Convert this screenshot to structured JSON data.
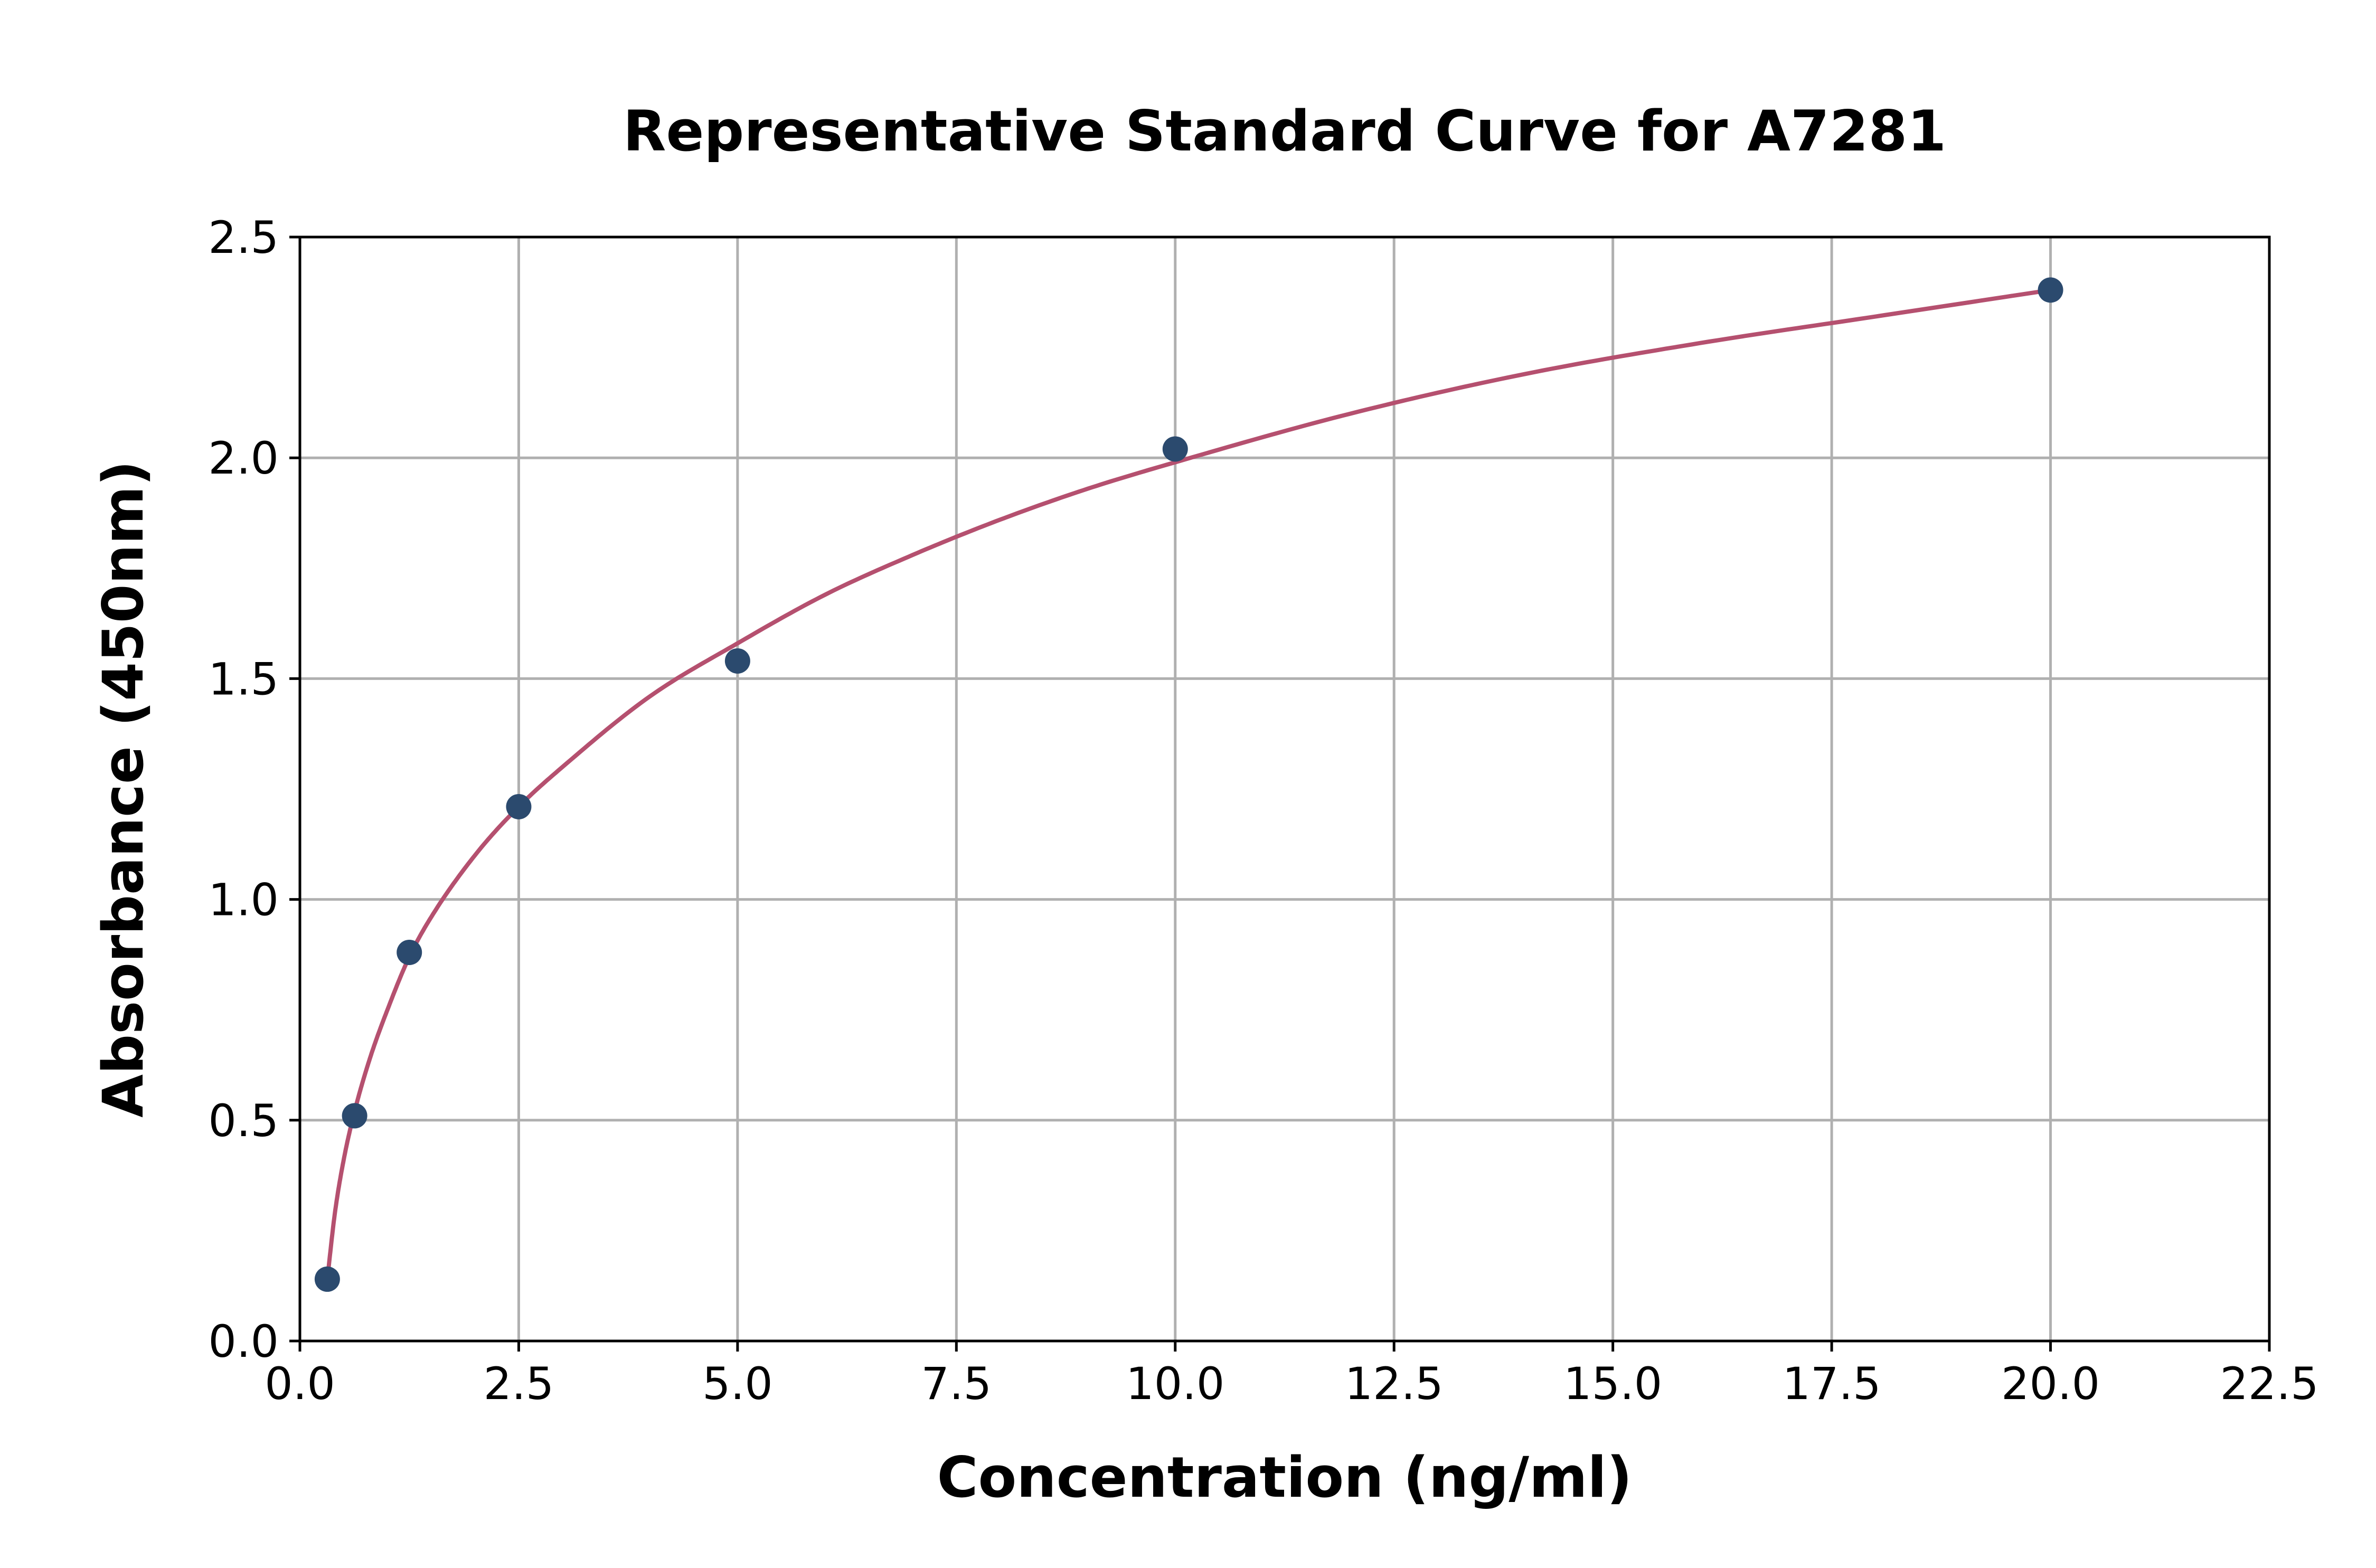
{
  "chart_data": {
    "type": "scatter",
    "title": "Representative Standard Curve for A7281",
    "xlabel": "Concentration (ng/ml)",
    "ylabel": "Absorbance (450nm)",
    "xlim": [
      0,
      22.5
    ],
    "ylim": [
      0,
      2.5
    ],
    "grid": true,
    "x_ticks": [
      "0.0",
      "2.5",
      "5.0",
      "7.5",
      "10.0",
      "12.5",
      "15.0",
      "17.5",
      "20.0",
      "22.5"
    ],
    "y_ticks": [
      "0.0",
      "0.5",
      "1.0",
      "1.5",
      "2.0",
      "2.5"
    ],
    "series": [
      {
        "kind": "points",
        "color": "#2b4a6e",
        "x": [
          0.313,
          0.625,
          1.25,
          2.5,
          5.0,
          10.0,
          20.0
        ],
        "y": [
          0.14,
          0.51,
          0.88,
          1.21,
          1.54,
          2.02,
          2.38
        ]
      },
      {
        "kind": "fit-curve",
        "color": "#b5506f",
        "x": [
          0.313,
          0.4,
          0.5,
          0.625,
          0.8,
          1.0,
          1.25,
          1.5,
          2.0,
          2.5,
          3.0,
          4.0,
          5.0,
          6.0,
          7.0,
          8.0,
          9.0,
          10.0,
          12.0,
          14.0,
          16.0,
          18.0,
          20.0
        ],
        "y": [
          0.14,
          0.29,
          0.41,
          0.52,
          0.64,
          0.75,
          0.87,
          0.96,
          1.1,
          1.21,
          1.3,
          1.46,
          1.58,
          1.69,
          1.78,
          1.86,
          1.93,
          1.99,
          2.1,
          2.19,
          2.26,
          2.32,
          2.38
        ]
      }
    ]
  }
}
